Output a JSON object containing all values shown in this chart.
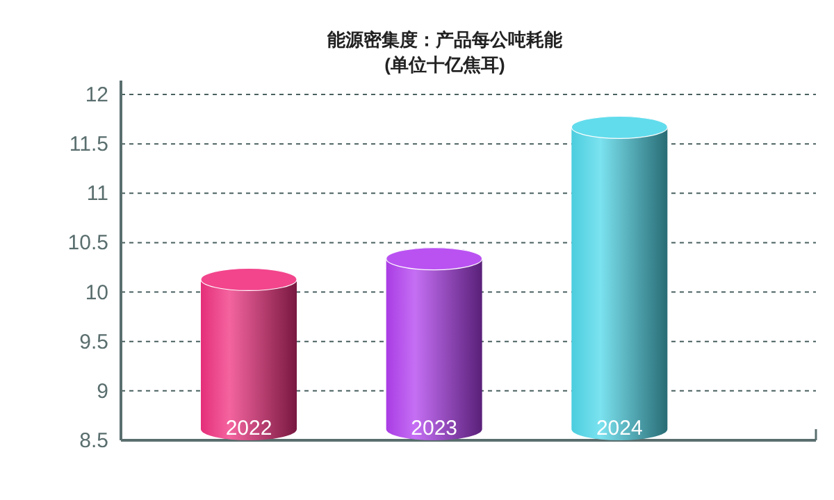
{
  "chart_data": {
    "type": "bar",
    "title": "能源密集度：产品每公吨耗能",
    "subtitle": "(单位十亿焦耳)",
    "categories": [
      "2022",
      "2023",
      "2024"
    ],
    "values": [
      10.24,
      10.45,
      11.78
    ],
    "colors": [
      "#f0307f",
      "#b23ff0",
      "#4fd8ea"
    ],
    "ylim": [
      8.5,
      12
    ],
    "yticks": [
      8.5,
      9,
      9.5,
      10,
      10.5,
      11,
      11.5,
      12
    ],
    "grid": "y"
  }
}
